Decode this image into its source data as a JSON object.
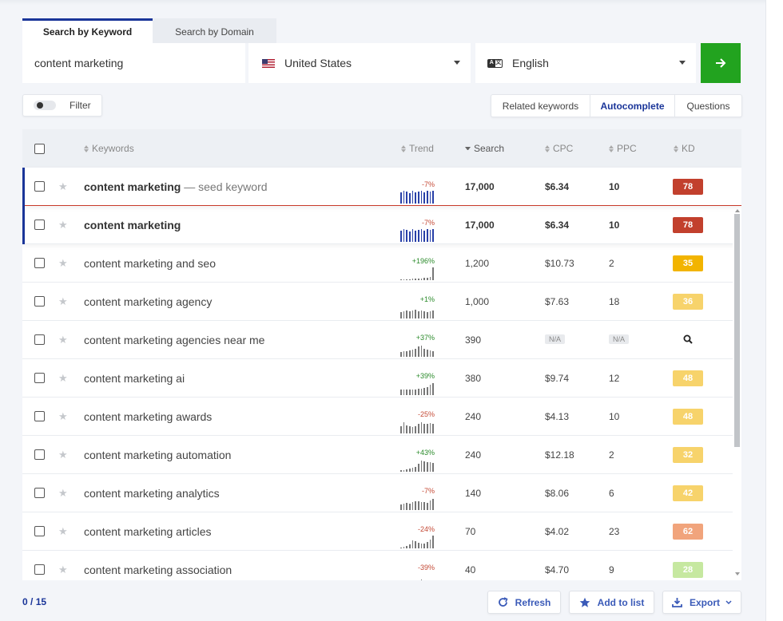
{
  "tabs": {
    "by_keyword": "Search by Keyword",
    "by_domain": "Search by Domain"
  },
  "search": {
    "keyword": "content marketing",
    "country": "United States",
    "language": "English"
  },
  "filter_label": "Filter",
  "modes": {
    "related": "Related keywords",
    "autocomplete": "Autocomplete",
    "questions": "Questions"
  },
  "columns": {
    "keywords": "Keywords",
    "trend": "Trend",
    "search": "Search",
    "cpc": "CPC",
    "ppc": "PPC",
    "kd": "KD"
  },
  "seed": {
    "keyword": "content marketing",
    "tag": "— seed keyword",
    "trend": "-7%",
    "search": "17,000",
    "cpc": "$6.34",
    "ppc": "10",
    "kd": "78"
  },
  "rows": [
    {
      "keyword": "content marketing",
      "trend": "-7%",
      "search": "17,000",
      "cpc": "$6.34",
      "ppc": "10",
      "kd": "78"
    },
    {
      "keyword": "content marketing and seo",
      "trend": "+196%",
      "search": "1,200",
      "cpc": "$10.73",
      "ppc": "2",
      "kd": "35"
    },
    {
      "keyword": "content marketing agency",
      "trend": "+1%",
      "search": "1,000",
      "cpc": "$7.63",
      "ppc": "18",
      "kd": "36"
    },
    {
      "keyword": "content marketing agencies near me",
      "trend": "+37%",
      "search": "390",
      "cpc": "N/A",
      "ppc": "N/A",
      "kd": ""
    },
    {
      "keyword": "content marketing ai",
      "trend": "+39%",
      "search": "380",
      "cpc": "$9.74",
      "ppc": "12",
      "kd": "48"
    },
    {
      "keyword": "content marketing awards",
      "trend": "-25%",
      "search": "240",
      "cpc": "$4.13",
      "ppc": "10",
      "kd": "48"
    },
    {
      "keyword": "content marketing automation",
      "trend": "+43%",
      "search": "240",
      "cpc": "$12.18",
      "ppc": "2",
      "kd": "32"
    },
    {
      "keyword": "content marketing analytics",
      "trend": "-7%",
      "search": "140",
      "cpc": "$8.06",
      "ppc": "6",
      "kd": "42"
    },
    {
      "keyword": "content marketing articles",
      "trend": "-24%",
      "search": "70",
      "cpc": "$4.02",
      "ppc": "23",
      "kd": "62"
    },
    {
      "keyword": "content marketing association",
      "trend": "-39%",
      "search": "40",
      "cpc": "$4.70",
      "ppc": "9",
      "kd": "28"
    }
  ],
  "kd_colors": {
    "78": "#c2402d",
    "35": "#f2b400",
    "36": "#f7d36b",
    "48": "#f7d36b",
    "32": "#f7d36b",
    "42": "#f7d36b",
    "62": "#f1a47c",
    "28": "#c6e8a0"
  },
  "trend_colors": {
    "positive": "#2a8a2a",
    "negative": "#c44a36"
  },
  "selection": {
    "selected": "0",
    "total": "15"
  },
  "buttons": {
    "refresh": "Refresh",
    "add_to_list": "Add to list",
    "export": "Export"
  }
}
